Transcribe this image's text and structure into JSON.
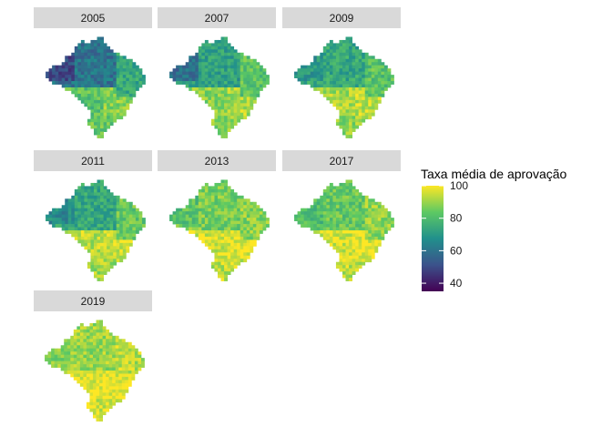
{
  "chart_data": {
    "type": "heatmap",
    "title": "",
    "facets": [
      "2005",
      "2007",
      "2009",
      "2011",
      "2013",
      "2017",
      "2019"
    ],
    "legend": {
      "title": "Taxa média de aprovação",
      "range": [
        35,
        100
      ],
      "ticks": [
        40,
        60,
        80,
        100
      ],
      "tick_labels": [
        "40",
        "60",
        "80",
        "100"
      ],
      "palette": [
        "#440154",
        "#3b528b",
        "#21908c",
        "#5dc963",
        "#fde725"
      ],
      "placement": "right"
    },
    "grid": false,
    "regional_pattern": {
      "2005": {
        "north": 60,
        "west": 50,
        "northeast": 74,
        "central": 82,
        "southeast": 88,
        "south": 84
      },
      "2007": {
        "north": 72,
        "west": 58,
        "northeast": 82,
        "central": 88,
        "southeast": 92,
        "south": 88
      },
      "2009": {
        "north": 74,
        "west": 70,
        "northeast": 82,
        "central": 91,
        "southeast": 94,
        "south": 89
      },
      "2011": {
        "north": 74,
        "west": 66,
        "northeast": 84,
        "central": 93,
        "southeast": 96,
        "south": 91
      },
      "2013": {
        "north": 86,
        "west": 82,
        "northeast": 88,
        "central": 96,
        "southeast": 98,
        "south": 93
      },
      "2017": {
        "north": 84,
        "west": 80,
        "northeast": 89,
        "central": 96,
        "southeast": 98,
        "south": 94
      },
      "2019": {
        "north": 90,
        "west": 88,
        "northeast": 93,
        "central": 98,
        "southeast": 99,
        "south": 96
      }
    }
  }
}
